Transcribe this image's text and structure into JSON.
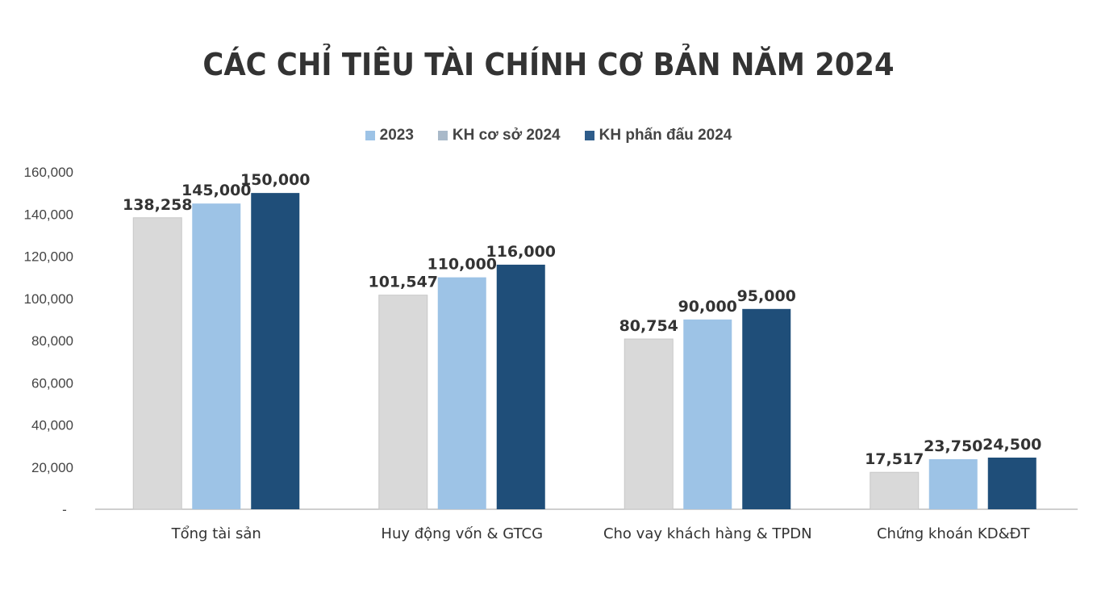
{
  "chart_data": {
    "type": "bar",
    "title": "CÁC CHỈ TIÊU TÀI CHÍNH CƠ BẢN NĂM 2024",
    "categories": [
      "Tổng tài sản",
      "Huy động vốn & GTCG",
      "Cho vay khách hàng & TPDN",
      "Chứng khoán KD&ĐT"
    ],
    "series": [
      {
        "name": "2023",
        "values": [
          138258,
          101547,
          80754,
          17517
        ],
        "color": "#d9d9d9",
        "legend_color": "#9dc3e6",
        "labels": [
          "138,258",
          "101,547",
          "80,754",
          "17,517"
        ]
      },
      {
        "name": "KH cơ sở 2024",
        "values": [
          145000,
          110000,
          90000,
          23750
        ],
        "color": "#9dc3e6",
        "legend_color": "#a9b9c9",
        "labels": [
          "145,000",
          "110,000",
          "90,000",
          "23,750"
        ]
      },
      {
        "name": "KH phấn đấu 2024",
        "values": [
          150000,
          116000,
          95000,
          24500
        ],
        "color": "#1f4e79",
        "legend_color": "#2e5c8a",
        "labels": [
          "150,000",
          "116,000",
          "95,000",
          "24,500"
        ]
      }
    ],
    "ylim": [
      0,
      160000
    ],
    "yticks": [
      "-",
      "20,000",
      "40,000",
      "60,000",
      "80,000",
      "100,000",
      "120,000",
      "140,000",
      "160,000"
    ],
    "grid": false,
    "legend_position": "top"
  }
}
